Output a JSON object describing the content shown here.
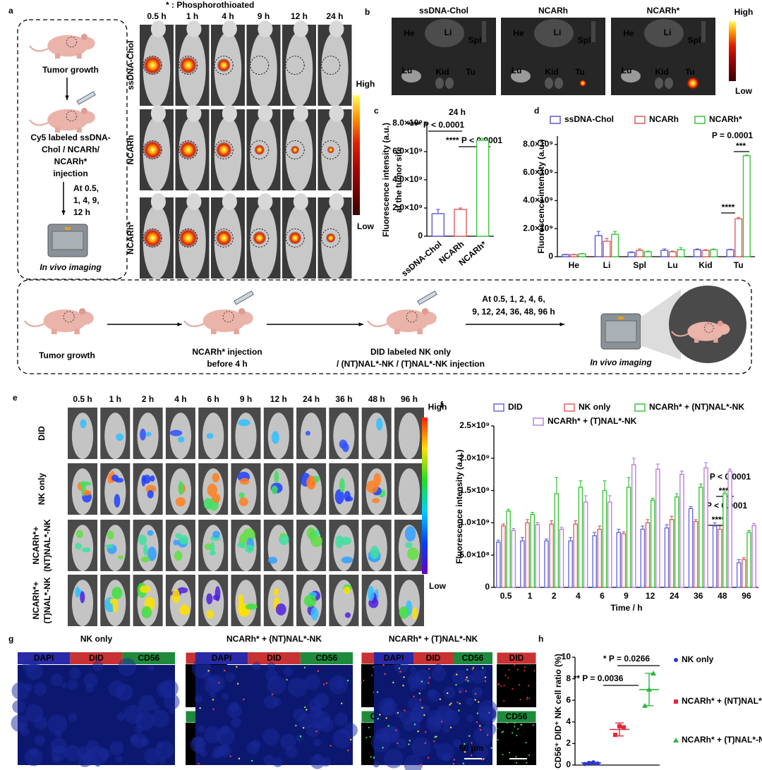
{
  "panel_labels": [
    "a",
    "b",
    "c",
    "d",
    "e",
    "f",
    "g",
    "h"
  ],
  "panel_a": {
    "note": "* : Phosphorothioated",
    "times": [
      "0.5 h",
      "1 h",
      "4 h",
      "9 h",
      "12 h",
      "24 h"
    ],
    "rows": [
      "ssDNA-Chol",
      "NCARh",
      "NCARh*"
    ],
    "scale_high": "High",
    "scale_low": "Low",
    "scheme": {
      "step1": "Tumor growth",
      "step2": [
        "Cy5 labeled ssDNA-",
        "Chol / NCARh/",
        "NCARh*",
        "injection"
      ],
      "step3": [
        "At 0.5,",
        "1, 4,  9,",
        "12  h"
      ],
      "step4": "In vivo imaging"
    }
  },
  "panel_b": {
    "titles": [
      "ssDNA-Chol",
      "NCARh",
      "NCARh*"
    ],
    "organs": [
      "He",
      "Li",
      "Spl",
      "Lu",
      "Kid",
      "Tu"
    ],
    "scale_high": "High",
    "scale_low": "Low"
  },
  "scheme": {
    "step1": "Tumor growth",
    "step2": [
      "NCARh* injection",
      "before 4 h"
    ],
    "step3": [
      "DID labeled  NK only",
      "/ (NT)NAL*-NK / (T)NAL*-NK injection"
    ],
    "step4": [
      "At 0.5, 1, 2, 4, 6,",
      "9, 12, 24, 36, 48, 96 h"
    ],
    "step5": "In vivo imaging"
  },
  "panel_e": {
    "times": [
      "0.5 h",
      "1 h",
      "2 h",
      "4 h",
      "6 h",
      "9 h",
      "12 h",
      "24 h",
      "36 h",
      "48 h",
      "96 h"
    ],
    "rows": [
      [
        "DID"
      ],
      [
        "NK only"
      ],
      [
        "NCARh*+",
        "(NT)NAL*-NK"
      ],
      [
        "NCARh*+",
        "(T)NAL*-NK"
      ]
    ],
    "scale_high": "High",
    "scale_low": "Low"
  },
  "panel_g": {
    "groups": [
      "NK only",
      "NCARh* + (NT)NAL*-NK",
      "NCARh* + (T)NAL*-NK"
    ],
    "channels": [
      "DAPI",
      "DID",
      "CD56"
    ],
    "scale_bar": "50 µm"
  },
  "chart_data": [
    {
      "type": "bar",
      "title": "24 h",
      "categories": [
        "ssDNA-Chol",
        "NCARh",
        "NCARh*"
      ],
      "values": [
        1600000000,
        1900000000,
        6800000000
      ],
      "errors": [
        300000000,
        100000000,
        150000000
      ],
      "colors": [
        "#5a5ad8",
        "#e05a5a",
        "#3cc43c"
      ],
      "ylim": [
        0,
        8000000000
      ],
      "yticks": [
        0,
        {
          "value": 2000000000,
          "label": "2.0×10⁹"
        },
        {
          "value": 4000000000,
          "label": "4.0×10⁹"
        },
        {
          "value": 6000000000,
          "label": "6.0×10⁹"
        },
        {
          "value": 8000000000,
          "label": "8.0×10⁹"
        }
      ],
      "ylabel": [
        "Fluorescence intensity (a.u.)",
        "at the tumor site"
      ],
      "annotations": [
        "**** P < 0.0001",
        "**** P < 0.0001"
      ]
    },
    {
      "type": "bar",
      "categories": [
        "He",
        "Li",
        "Spl",
        "Lu",
        "Kid",
        "Tu"
      ],
      "series": [
        {
          "name": "ssDNA-Chol",
          "color": "#5a5ad8",
          "values": [
            150000000,
            1500000000,
            300000000,
            450000000,
            500000000,
            500000000
          ],
          "errors": [
            20000000,
            300000000,
            50000000,
            100000000,
            50000000,
            30000000
          ]
        },
        {
          "name": "NCARh",
          "color": "#e05a5a",
          "values": [
            150000000,
            1100000000,
            450000000,
            350000000,
            450000000,
            2700000000
          ],
          "errors": [
            20000000,
            200000000,
            100000000,
            50000000,
            50000000,
            100000000
          ]
        },
        {
          "name": "NCARh*",
          "color": "#3cc43c",
          "values": [
            200000000,
            1600000000,
            350000000,
            500000000,
            500000000,
            7200000000
          ],
          "errors": [
            30000000,
            200000000,
            50000000,
            150000000,
            50000000,
            50000000
          ]
        }
      ],
      "ylim": [
        0,
        8600000000
      ],
      "yticks": [
        0,
        {
          "value": 2000000000,
          "label": "2.0×10⁹"
        },
        {
          "value": 4000000000,
          "label": "4.0×10⁹"
        },
        {
          "value": 6000000000,
          "label": "6.0×10⁹"
        },
        {
          "value": 8000000000,
          "label": "8.0×10⁹"
        }
      ],
      "ylabel": [
        "Fluorescence intensity (a.u.)"
      ],
      "annotations": [
        "P = 0.0001",
        "***",
        "****"
      ],
      "legend": "top"
    },
    {
      "type": "bar",
      "categories": [
        "0.5",
        "1",
        "2",
        "4",
        "6",
        "9",
        "12",
        "24",
        "36",
        "48",
        "96"
      ],
      "series": [
        {
          "name": "DID",
          "color": "#6a6ae0",
          "values": [
            700000000,
            720000000,
            720000000,
            720000000,
            800000000,
            850000000,
            900000000,
            920000000,
            1220000000,
            950000000,
            380000000
          ],
          "errors": [
            30000000,
            50000000,
            30000000,
            50000000,
            50000000,
            50000000,
            50000000,
            50000000,
            30000000,
            50000000,
            50000000
          ]
        },
        {
          "name": "NK only",
          "color": "#e06060",
          "values": [
            950000000,
            1000000000,
            980000000,
            980000000,
            900000000,
            830000000,
            1000000000,
            1050000000,
            1020000000,
            900000000,
            430000000
          ],
          "errors": [
            30000000,
            50000000,
            50000000,
            50000000,
            50000000,
            30000000,
            50000000,
            50000000,
            30000000,
            50000000,
            30000000
          ]
        },
        {
          "name": "NCARh* + (NT)NAL*-NK",
          "color": "#3cc43c",
          "values": [
            1180000000,
            1130000000,
            1450000000,
            1550000000,
            1500000000,
            1550000000,
            1350000000,
            1400000000,
            1550000000,
            1450000000,
            850000000
          ],
          "errors": [
            30000000,
            30000000,
            250000000,
            100000000,
            150000000,
            150000000,
            30000000,
            50000000,
            50000000,
            30000000,
            30000000
          ]
        },
        {
          "name": "NCARh* + (T)NAL*-NK",
          "color": "#c07ee0",
          "values": [
            880000000,
            970000000,
            900000000,
            1320000000,
            1320000000,
            1900000000,
            1830000000,
            1750000000,
            1850000000,
            1800000000,
            960000000
          ],
          "errors": [
            30000000,
            30000000,
            30000000,
            100000000,
            100000000,
            100000000,
            80000000,
            50000000,
            80000000,
            30000000,
            30000000
          ]
        }
      ],
      "ylim": [
        0,
        2500000000
      ],
      "yticks": [
        0,
        {
          "value": 500000000,
          "label": "5.0×10⁸"
        },
        {
          "value": 1000000000,
          "label": "1.0×10⁹"
        },
        {
          "value": 1500000000,
          "label": "1.5×10⁹"
        },
        {
          "value": 2000000000,
          "label": "2.0×10⁹"
        },
        {
          "value": 2500000000,
          "label": "2.5×10⁹"
        }
      ],
      "ylabel": [
        "Fluorescence intensity (a.u.)"
      ],
      "xlabel": "Time / h",
      "annotations": [
        "P < 0.0001",
        "****",
        "P < 0.0001",
        "****"
      ],
      "legend": "top"
    },
    {
      "type": "dot",
      "series": [
        {
          "name": "NK only",
          "color": "#2a3ad0",
          "marker": "circle",
          "values": [
            0.1,
            0.2,
            0.25,
            0.15
          ],
          "mean": 0.2,
          "error": 0.1
        },
        {
          "name": "NCARh* + (NT)NAL*-NK",
          "color": "#e02a3a",
          "marker": "square",
          "values": [
            2.8,
            3.6,
            3.5
          ],
          "mean": 3.3,
          "error": 0.6
        },
        {
          "name": "NCARh* + (T)NAL*-NK",
          "color": "#2ab83a",
          "marker": "triangle",
          "values": [
            5.5,
            7.0,
            8.5
          ],
          "mean": 7.0,
          "error": 1.5
        }
      ],
      "ylim": [
        0,
        10
      ],
      "yticks": [
        0,
        2,
        4,
        6,
        8,
        10
      ],
      "ylabel": [
        "CD56⁺ DID⁺ NK cell ratio (%)"
      ],
      "annotations": [
        "** P = 0.0036",
        "* P = 0.0266"
      ],
      "legend": "right"
    }
  ]
}
